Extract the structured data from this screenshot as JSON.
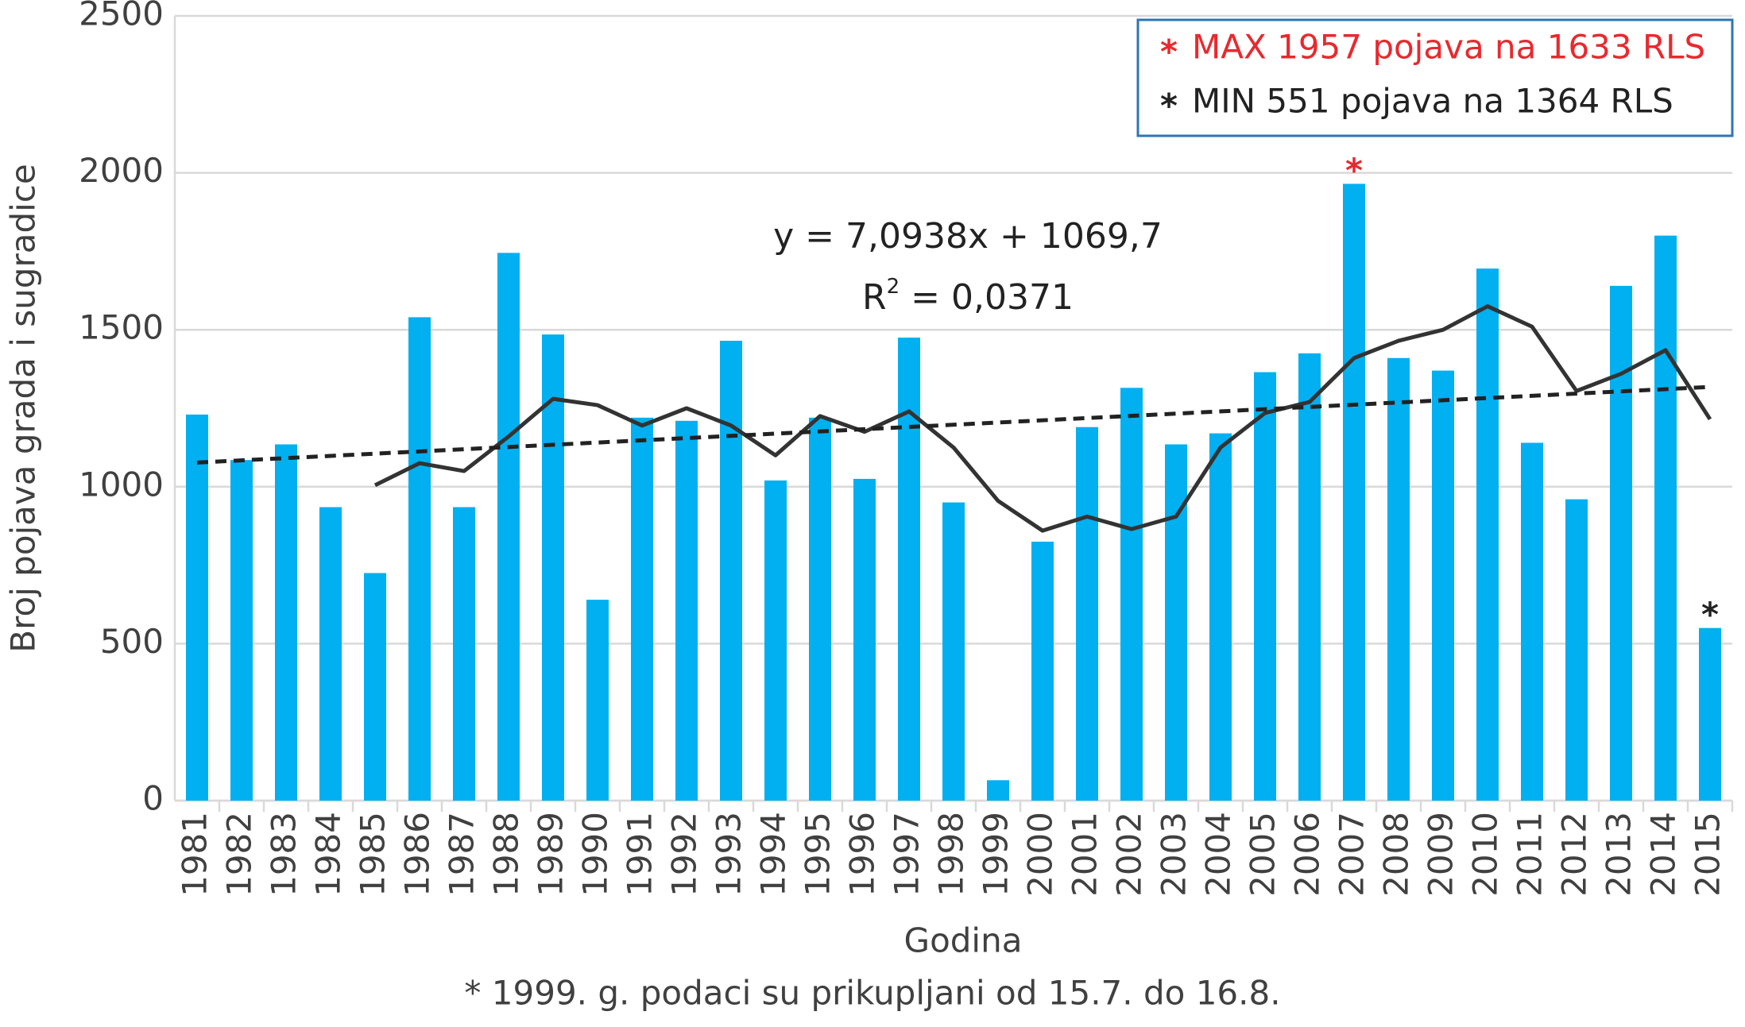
{
  "chart_data": {
    "type": "bar_line",
    "categories": [
      "1981",
      "1982",
      "1983",
      "1984",
      "1985",
      "1986",
      "1987",
      "1988",
      "1989",
      "1990",
      "1991",
      "1992",
      "1993",
      "1994",
      "1995",
      "1996",
      "1997",
      "1998",
      "1999",
      "2000",
      "2001",
      "2002",
      "2003",
      "2004",
      "2005",
      "2006",
      "2007",
      "2008",
      "2009",
      "2010",
      "2011",
      "2012",
      "2013",
      "2014",
      "2015"
    ],
    "series": [
      {
        "type": "bar",
        "color": "#00b0f0",
        "values": [
          1230,
          1085,
          1135,
          935,
          725,
          1540,
          935,
          1745,
          1485,
          640,
          1220,
          1210,
          1465,
          1020,
          1220,
          1025,
          1475,
          950,
          65,
          825,
          1190,
          1315,
          1135,
          1170,
          1365,
          1425,
          1965,
          1410,
          1370,
          1695,
          1140,
          960,
          1640,
          1800,
          550
        ]
      },
      {
        "type": "line",
        "color": "#333333",
        "values": [
          null,
          null,
          null,
          null,
          1005,
          1075,
          1050,
          1160,
          1280,
          1260,
          1195,
          1250,
          1195,
          1100,
          1225,
          1175,
          1240,
          1125,
          955,
          860,
          905,
          865,
          905,
          1125,
          1235,
          1270,
          1410,
          1465,
          1500,
          1575,
          1510,
          1305,
          1360,
          1435,
          1215
        ]
      }
    ],
    "trend": {
      "color": "#222222",
      "x": [
        "1981",
        "2015"
      ],
      "values": [
        1077,
        1318
      ]
    },
    "equation": "y = 7,0938x + 1069,7",
    "r_squared": {
      "base": "R",
      "sup": "2",
      "rest": " = 0,0371"
    },
    "ylim": [
      0,
      2500
    ],
    "yticks": [
      0,
      500,
      1000,
      1500,
      2000,
      2500
    ],
    "grid": true,
    "y_label": "Broj pojava grada i sugradice",
    "x_label": "Godina",
    "footnote": "* 1999. g. podaci su prikupljani od 15.7. do 16.8.",
    "legend": [
      {
        "marker": "*",
        "text": "MAX 1957 pojava na 1633 RLS",
        "color": "#e8292e"
      },
      {
        "marker": "*",
        "text": "MIN 551 pojava na 1364 RLS",
        "color": "#222222"
      }
    ],
    "annotations": [
      {
        "text": "*",
        "x": "2007",
        "color": "#e8292e"
      },
      {
        "text": "*",
        "x": "2015",
        "color": "#222222"
      }
    ]
  }
}
